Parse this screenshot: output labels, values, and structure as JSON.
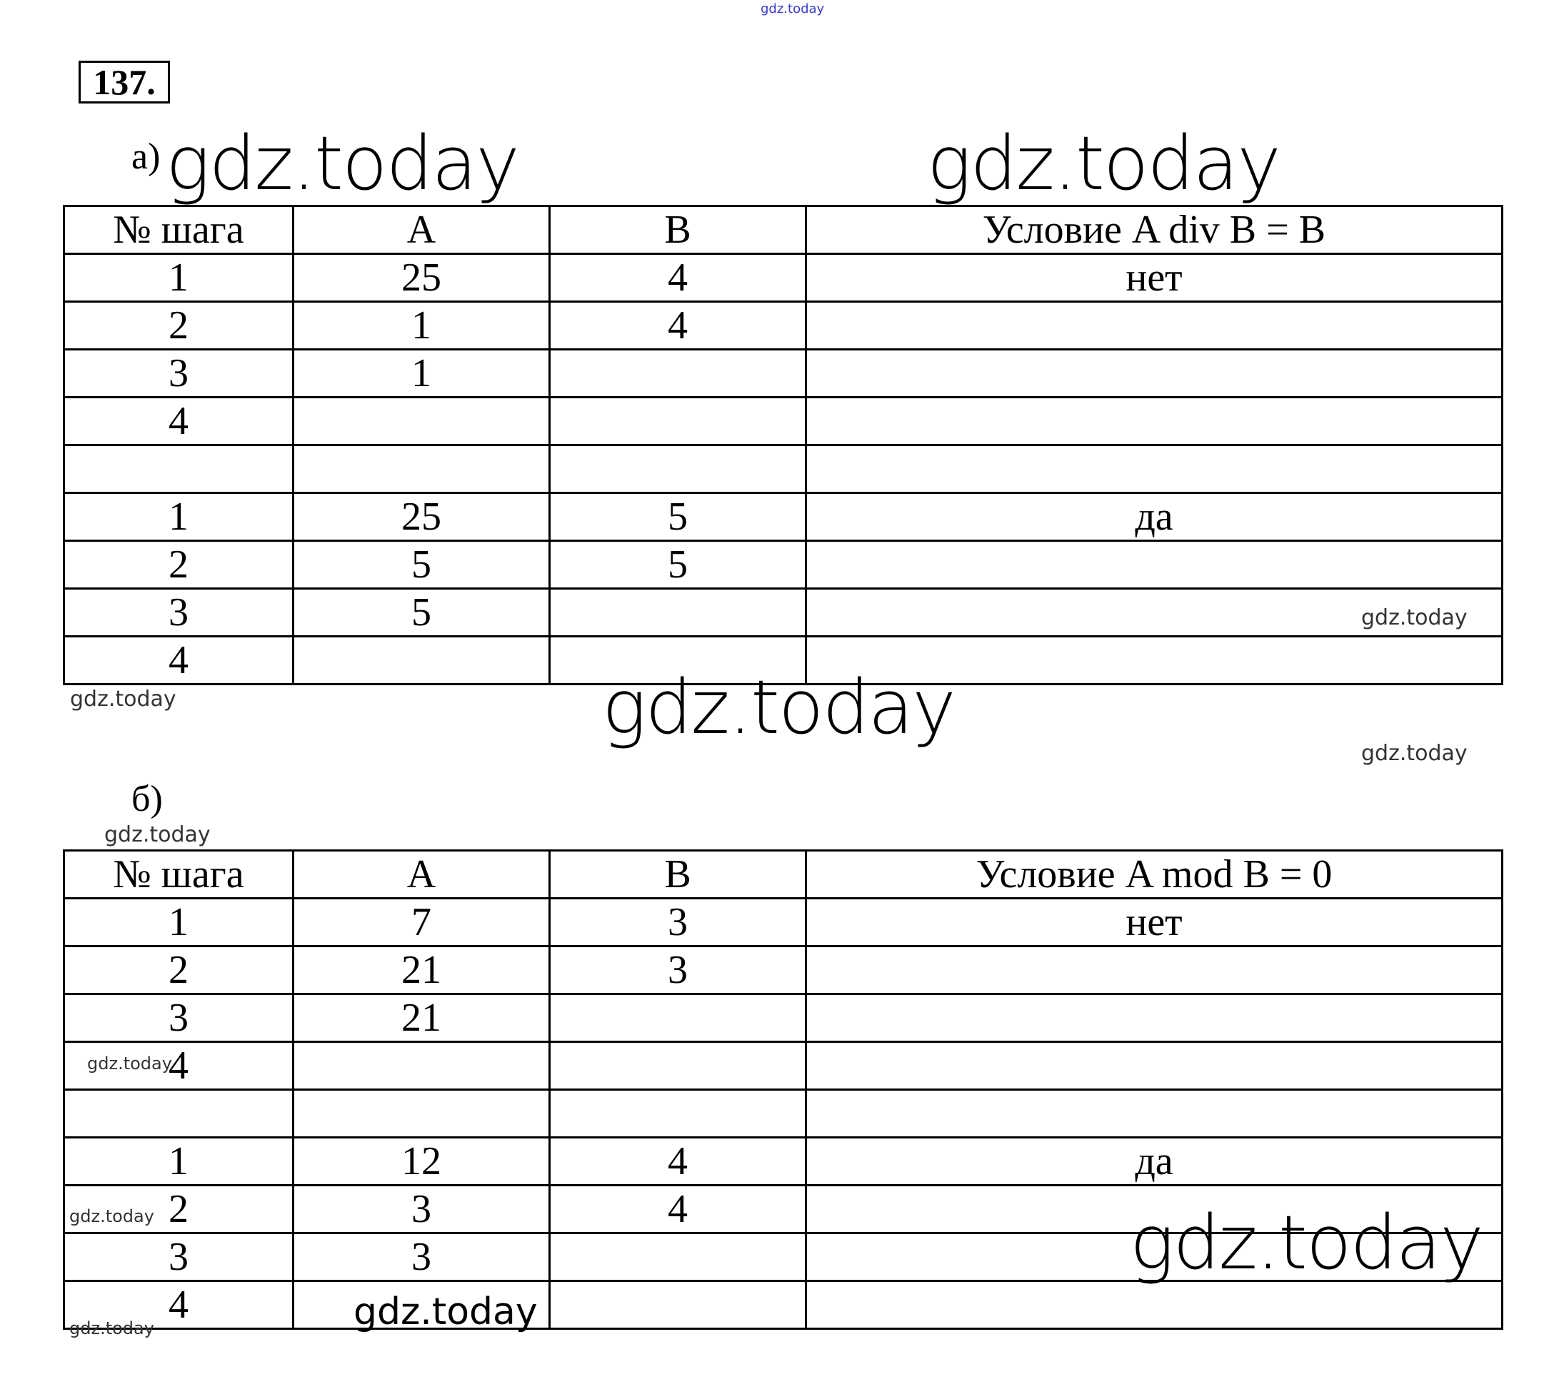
{
  "problem_number": "137.",
  "watermark": "gdz.today",
  "part_a": {
    "label": "а)",
    "headers": [
      "№ шага",
      "A",
      "B",
      "Условие A div B = B"
    ],
    "rows": [
      [
        "1",
        "25",
        "4",
        "нет"
      ],
      [
        "2",
        "1",
        "4",
        ""
      ],
      [
        "3",
        "1",
        "",
        ""
      ],
      [
        "4",
        "",
        "",
        ""
      ],
      [
        "",
        "",
        "",
        ""
      ],
      [
        "1",
        "25",
        "5",
        "да"
      ],
      [
        "2",
        "5",
        "5",
        ""
      ],
      [
        "3",
        "5",
        "",
        ""
      ],
      [
        "4",
        "",
        "",
        ""
      ]
    ]
  },
  "part_b": {
    "label": "б)",
    "headers": [
      "№ шага",
      "A",
      "B",
      "Условие A mod B = 0"
    ],
    "rows": [
      [
        "1",
        "7",
        "3",
        "нет"
      ],
      [
        "2",
        "21",
        "3",
        ""
      ],
      [
        "3",
        "21",
        "",
        ""
      ],
      [
        "4",
        "",
        "",
        ""
      ],
      [
        "",
        "",
        "",
        ""
      ],
      [
        "1",
        "12",
        "4",
        "да"
      ],
      [
        "2",
        "3",
        "4",
        ""
      ],
      [
        "3",
        "3",
        "",
        ""
      ],
      [
        "4",
        "",
        "",
        ""
      ]
    ]
  }
}
